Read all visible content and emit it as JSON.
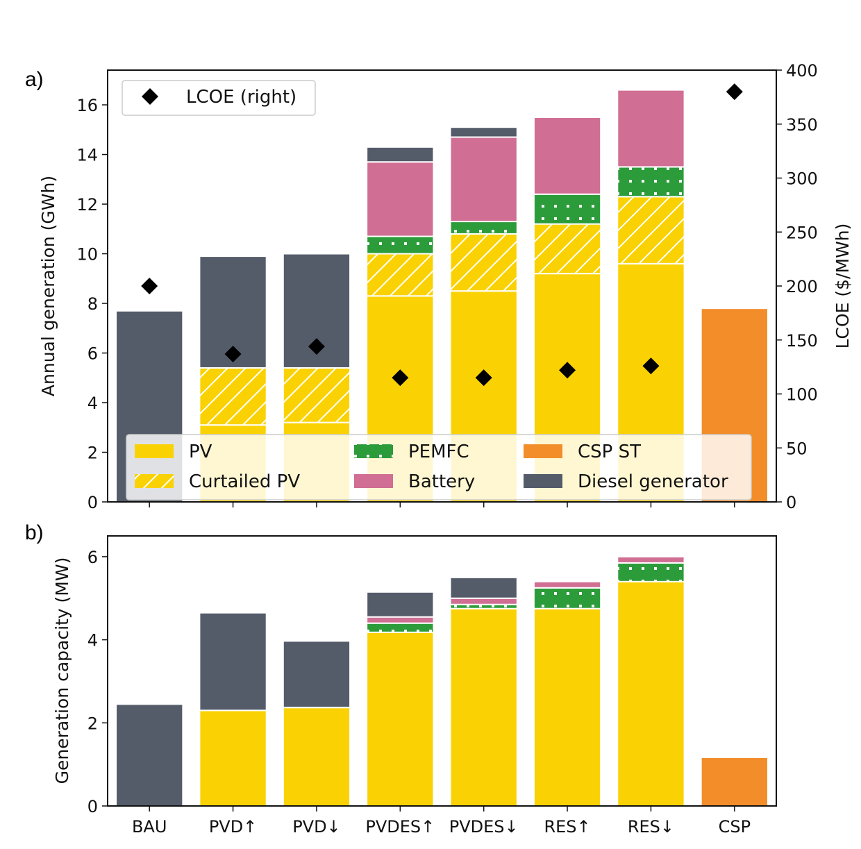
{
  "chart_data": [
    {
      "type": "bar",
      "stacked": true,
      "panel_label": "a)",
      "categories": [
        "BAU",
        "PVD↑",
        "PVD↓",
        "PVDES↑",
        "PVDES↓",
        "RES↑",
        "RES↓",
        "CSP"
      ],
      "ylabel": "Annual generation (GWh)",
      "ylim": [
        0,
        17.4
      ],
      "yticks": [
        0,
        2,
        4,
        6,
        8,
        10,
        12,
        14,
        16
      ],
      "series": [
        {
          "name": "PV",
          "color": "#fad203",
          "hatch": "none",
          "values": [
            0,
            3.1,
            3.2,
            8.3,
            8.5,
            9.2,
            9.6,
            0
          ]
        },
        {
          "name": "Curtailed PV",
          "color": "#fad203",
          "hatch": "diagonal",
          "values": [
            0,
            2.3,
            2.2,
            1.7,
            2.3,
            2.0,
            2.7,
            0
          ]
        },
        {
          "name": "PEMFC",
          "color": "#2c9c3a",
          "hatch": "dots",
          "values": [
            0,
            0,
            0,
            0.7,
            0.5,
            1.2,
            1.2,
            0
          ]
        },
        {
          "name": "Battery",
          "color": "#d06e93",
          "hatch": "none",
          "values": [
            0,
            0,
            0,
            3.0,
            3.4,
            3.1,
            3.1,
            0
          ]
        },
        {
          "name": "Diesel generator",
          "color": "#545c6a",
          "hatch": "none",
          "values": [
            7.7,
            4.5,
            4.6,
            0.6,
            0.4,
            0,
            0,
            0
          ]
        },
        {
          "name": "CSP ST",
          "color": "#f28d2a",
          "hatch": "none",
          "values": [
            0,
            0,
            0,
            0,
            0,
            0,
            0,
            7.8
          ]
        }
      ],
      "secondary": {
        "name": "LCOE (right)",
        "ylabel": "LCOE ($/MWh)",
        "ylim": [
          0,
          400
        ],
        "yticks": [
          0,
          50,
          100,
          150,
          200,
          250,
          300,
          350,
          400
        ],
        "values": [
          200,
          137,
          144,
          115,
          115,
          122,
          126,
          380
        ],
        "marker": "diamond",
        "color": "#000000"
      },
      "legend_labels": {
        "lcoe": "LCOE (right)",
        "items": [
          "PV",
          "Curtailed PV",
          "PEMFC",
          "Battery",
          "CSP ST",
          "Diesel generator"
        ]
      }
    },
    {
      "type": "bar",
      "stacked": true,
      "panel_label": "b)",
      "categories": [
        "BAU",
        "PVD↑",
        "PVD↓",
        "PVDES↑",
        "PVDES↓",
        "RES↑",
        "RES↓",
        "CSP"
      ],
      "ylabel": "Generation capacity (MW)",
      "ylim": [
        0,
        6.5
      ],
      "yticks": [
        0,
        2,
        4,
        6
      ],
      "series": [
        {
          "name": "PV",
          "color": "#fad203",
          "hatch": "none",
          "values": [
            0,
            2.3,
            2.37,
            4.18,
            4.75,
            4.75,
            5.4,
            0
          ]
        },
        {
          "name": "PEMFC",
          "color": "#2c9c3a",
          "hatch": "dots",
          "values": [
            0,
            0,
            0,
            0.22,
            0.1,
            0.5,
            0.45,
            0
          ]
        },
        {
          "name": "Battery",
          "color": "#d06e93",
          "hatch": "none",
          "values": [
            0,
            0,
            0,
            0.15,
            0.15,
            0.15,
            0.15,
            0
          ]
        },
        {
          "name": "Diesel generator",
          "color": "#545c6a",
          "hatch": "none",
          "values": [
            2.45,
            2.35,
            1.6,
            0.6,
            0.5,
            0,
            0,
            0
          ]
        },
        {
          "name": "CSP ST",
          "color": "#f28d2a",
          "hatch": "none",
          "values": [
            0,
            0,
            0,
            0,
            0,
            0,
            0,
            1.17
          ]
        }
      ]
    }
  ]
}
